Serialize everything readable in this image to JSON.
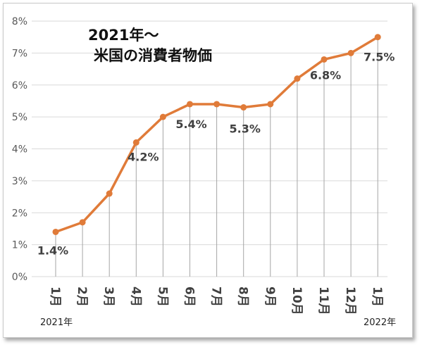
{
  "chart_data": {
    "type": "line",
    "title_lines": [
      "2021年～",
      "米国の消費者物価"
    ],
    "categories": [
      "1月",
      "2月",
      "3月",
      "4月",
      "5月",
      "6月",
      "7月",
      "8月",
      "9月",
      "10月",
      "11月",
      "12月",
      "1月"
    ],
    "values": [
      1.4,
      1.7,
      2.6,
      4.2,
      5.0,
      5.4,
      5.4,
      5.3,
      5.4,
      6.2,
      6.8,
      7.0,
      7.5
    ],
    "data_labels": [
      {
        "index": 0,
        "text": "1.4%"
      },
      {
        "index": 3,
        "text": "4.2%"
      },
      {
        "index": 5,
        "text": "5.4%"
      },
      {
        "index": 7,
        "text": "5.3%"
      },
      {
        "index": 10,
        "text": "6.8%"
      },
      {
        "index": 12,
        "text": "7.5%"
      }
    ],
    "yticks": [
      "0%",
      "1%",
      "2%",
      "3%",
      "4%",
      "5%",
      "6%",
      "7%",
      "8%"
    ],
    "ylim": [
      0,
      8
    ],
    "year_labels": {
      "start": "2021年",
      "end": "2022年"
    },
    "grid": true,
    "drop_lines": true,
    "colors": {
      "line": "#e07b39",
      "marker": "#e07b39",
      "grid": "#d9d9d9",
      "drop_line": "#a6a6a6"
    }
  }
}
